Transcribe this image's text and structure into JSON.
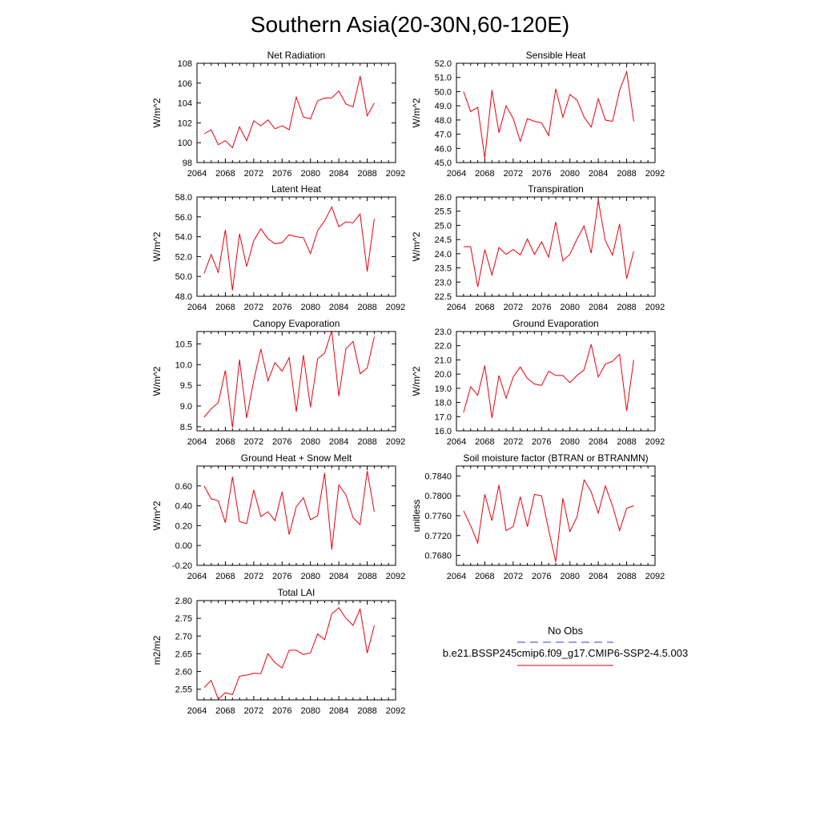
{
  "title": "Southern Asia(20-30N,60-120E)",
  "colors": {
    "model_line": "#e8000b",
    "obs_line": "#3a3ad0",
    "axis": "#000000"
  },
  "legend": {
    "obs_label": "No Obs",
    "model_label": "b.e21.BSSP245cmip6.f09_g17.CMIP6-SSP2-4.5.003"
  },
  "chart_data": [
    {
      "type": "line",
      "title": "Net Radiation",
      "ylabel": "W/m^2",
      "xlim": [
        2064,
        2092
      ],
      "xticks": [
        "2064",
        "2068",
        "2072",
        "2076",
        "2080",
        "2084",
        "2088",
        "2092"
      ],
      "ylim": [
        98,
        108
      ],
      "yticks": [
        "98",
        "100",
        "102",
        "104",
        "106",
        "108"
      ],
      "x": [
        2065,
        2066,
        2067,
        2068,
        2069,
        2070,
        2071,
        2072,
        2073,
        2074,
        2075,
        2076,
        2077,
        2078,
        2079,
        2080,
        2081,
        2082,
        2083,
        2084,
        2085,
        2086,
        2087,
        2088,
        2089
      ],
      "series": [
        {
          "values": [
            100.9,
            101.3,
            99.8,
            100.2,
            99.5,
            101.6,
            100.2,
            102.2,
            101.7,
            102.3,
            101.4,
            101.7,
            101.3,
            104.6,
            102.6,
            102.4,
            104.2,
            104.5,
            104.5,
            105.2,
            103.9,
            103.6,
            106.7,
            102.7,
            104.0
          ]
        }
      ]
    },
    {
      "type": "line",
      "title": "Sensible Heat",
      "ylabel": "W/m^2",
      "xlim": [
        2064,
        2092
      ],
      "xticks": [
        "2064",
        "2068",
        "2072",
        "2076",
        "2080",
        "2084",
        "2088",
        "2092"
      ],
      "ylim": [
        45,
        52
      ],
      "yticks": [
        "45.0",
        "46.0",
        "47.0",
        "48.0",
        "49.0",
        "50.0",
        "51.0",
        "52.0"
      ],
      "x": [
        2065,
        2066,
        2067,
        2068,
        2069,
        2070,
        2071,
        2072,
        2073,
        2074,
        2075,
        2076,
        2077,
        2078,
        2079,
        2080,
        2081,
        2082,
        2083,
        2084,
        2085,
        2086,
        2087,
        2088,
        2089
      ],
      "series": [
        {
          "values": [
            50.0,
            48.6,
            48.9,
            45.3,
            50.1,
            47.1,
            49.0,
            48.1,
            46.5,
            48.1,
            47.9,
            47.8,
            46.9,
            50.2,
            48.2,
            49.8,
            49.4,
            48.2,
            47.5,
            49.5,
            48.0,
            47.9,
            50.1,
            51.4,
            47.9
          ]
        }
      ]
    },
    {
      "type": "line",
      "title": "Latent Heat",
      "ylabel": "W/m^2",
      "xlim": [
        2064,
        2092
      ],
      "xticks": [
        "2064",
        "2068",
        "2072",
        "2076",
        "2080",
        "2084",
        "2088",
        "2092"
      ],
      "ylim": [
        48,
        58
      ],
      "yticks": [
        "48.0",
        "50.0",
        "52.0",
        "54.0",
        "56.0",
        "58.0"
      ],
      "x": [
        2065,
        2066,
        2067,
        2068,
        2069,
        2070,
        2071,
        2072,
        2073,
        2074,
        2075,
        2076,
        2077,
        2078,
        2079,
        2080,
        2081,
        2082,
        2083,
        2084,
        2085,
        2086,
        2087,
        2088,
        2089
      ],
      "series": [
        {
          "values": [
            50.3,
            52.2,
            50.4,
            54.7,
            48.6,
            54.3,
            51.0,
            53.6,
            54.8,
            53.8,
            53.3,
            53.4,
            54.2,
            54.0,
            53.9,
            52.3,
            54.6,
            55.6,
            57.0,
            55.0,
            55.5,
            55.4,
            56.3,
            50.5,
            55.8
          ]
        }
      ]
    },
    {
      "type": "line",
      "title": "Transpiration",
      "ylabel": "W/m^2",
      "xlim": [
        2064,
        2092
      ],
      "xticks": [
        "2064",
        "2068",
        "2072",
        "2076",
        "2080",
        "2084",
        "2088",
        "2092"
      ],
      "ylim": [
        22.5,
        26.0
      ],
      "yticks": [
        "22.5",
        "23.0",
        "23.5",
        "24.0",
        "24.5",
        "25.0",
        "25.5",
        "26.0"
      ],
      "x": [
        2065,
        2066,
        2067,
        2068,
        2069,
        2070,
        2071,
        2072,
        2073,
        2074,
        2075,
        2076,
        2077,
        2078,
        2079,
        2080,
        2081,
        2082,
        2083,
        2084,
        2085,
        2086,
        2087,
        2088,
        2089
      ],
      "series": [
        {
          "values": [
            24.25,
            24.25,
            22.83,
            24.15,
            23.25,
            24.22,
            23.98,
            24.15,
            23.95,
            24.52,
            23.98,
            24.42,
            23.88,
            25.12,
            23.75,
            23.98,
            24.52,
            24.98,
            24.02,
            25.88,
            24.45,
            23.95,
            25.05,
            23.12,
            24.08
          ]
        }
      ]
    },
    {
      "type": "line",
      "title": "Canopy Evaporation",
      "ylabel": "W/m^2",
      "xlim": [
        2064,
        2092
      ],
      "xticks": [
        "2064",
        "2068",
        "2072",
        "2076",
        "2080",
        "2084",
        "2088",
        "2092"
      ],
      "ylim": [
        8.4,
        10.8
      ],
      "yticks": [
        "8.5",
        "9.0",
        "9.5",
        "10.0",
        "10.5"
      ],
      "x": [
        2065,
        2066,
        2067,
        2068,
        2069,
        2070,
        2071,
        2072,
        2073,
        2074,
        2075,
        2076,
        2077,
        2078,
        2079,
        2080,
        2081,
        2082,
        2083,
        2084,
        2085,
        2086,
        2087,
        2088,
        2089
      ],
      "series": [
        {
          "values": [
            8.73,
            8.93,
            9.08,
            9.86,
            8.48,
            10.12,
            8.71,
            9.62,
            10.38,
            9.61,
            10.05,
            9.84,
            10.17,
            8.86,
            10.23,
            8.97,
            10.14,
            10.28,
            10.82,
            9.24,
            10.38,
            10.56,
            9.78,
            9.92,
            10.67
          ]
        }
      ]
    },
    {
      "type": "line",
      "title": "Ground Evaporation",
      "ylabel": "W/m^2",
      "xlim": [
        2064,
        2092
      ],
      "xticks": [
        "2064",
        "2068",
        "2072",
        "2076",
        "2080",
        "2084",
        "2088",
        "2092"
      ],
      "ylim": [
        16,
        23
      ],
      "yticks": [
        "16.0",
        "17.0",
        "18.0",
        "19.0",
        "20.0",
        "21.0",
        "22.0",
        "23.0"
      ],
      "x": [
        2065,
        2066,
        2067,
        2068,
        2069,
        2070,
        2071,
        2072,
        2073,
        2074,
        2075,
        2076,
        2077,
        2078,
        2079,
        2080,
        2081,
        2082,
        2083,
        2084,
        2085,
        2086,
        2087,
        2088,
        2089
      ],
      "series": [
        {
          "values": [
            17.3,
            19.1,
            18.5,
            20.6,
            16.9,
            19.9,
            18.3,
            19.8,
            20.5,
            19.7,
            19.3,
            19.2,
            20.2,
            19.9,
            19.9,
            19.4,
            19.9,
            20.3,
            22.1,
            19.8,
            20.7,
            20.9,
            21.4,
            17.4,
            21.0
          ]
        }
      ]
    },
    {
      "type": "line",
      "title": "Ground Heat + Snow Melt",
      "ylabel": "W/m^2",
      "xlim": [
        2064,
        2092
      ],
      "xticks": [
        "2064",
        "2068",
        "2072",
        "2076",
        "2080",
        "2084",
        "2088",
        "2092"
      ],
      "ylim": [
        -0.2,
        0.8
      ],
      "yticks": [
        "-0.20",
        "0.00",
        "0.20",
        "0.40",
        "0.60"
      ],
      "x": [
        2065,
        2066,
        2067,
        2068,
        2069,
        2070,
        2071,
        2072,
        2073,
        2074,
        2075,
        2076,
        2077,
        2078,
        2079,
        2080,
        2081,
        2082,
        2083,
        2084,
        2085,
        2086,
        2087,
        2088,
        2089
      ],
      "series": [
        {
          "values": [
            0.6,
            0.47,
            0.45,
            0.23,
            0.69,
            0.24,
            0.22,
            0.56,
            0.29,
            0.34,
            0.25,
            0.54,
            0.11,
            0.39,
            0.48,
            0.26,
            0.3,
            0.73,
            -0.04,
            0.61,
            0.51,
            0.28,
            0.21,
            0.75,
            0.34
          ]
        }
      ]
    },
    {
      "type": "line",
      "title": "Soil moisture factor (BTRAN or BTRANMN)",
      "ylabel": "unitless",
      "xlim": [
        2064,
        2092
      ],
      "xticks": [
        "2064",
        "2068",
        "2072",
        "2076",
        "2080",
        "2084",
        "2088",
        "2092"
      ],
      "ylim": [
        0.766,
        0.786
      ],
      "yticks": [
        "0.7680",
        "0.7720",
        "0.7760",
        "0.7800",
        "0.7840"
      ],
      "x": [
        2065,
        2066,
        2067,
        2068,
        2069,
        2070,
        2071,
        2072,
        2073,
        2074,
        2075,
        2076,
        2077,
        2078,
        2079,
        2080,
        2081,
        2082,
        2083,
        2084,
        2085,
        2086,
        2087,
        2088,
        2089
      ],
      "series": [
        {
          "values": [
            0.777,
            0.774,
            0.7705,
            0.7803,
            0.775,
            0.7822,
            0.773,
            0.7738,
            0.7798,
            0.7738,
            0.7803,
            0.78,
            0.7732,
            0.7667,
            0.7795,
            0.7728,
            0.7758,
            0.7832,
            0.7808,
            0.7765,
            0.782,
            0.778,
            0.773,
            0.7775,
            0.778
          ]
        }
      ]
    },
    {
      "type": "line",
      "title": "Total LAI",
      "ylabel": "m2/m2",
      "xlim": [
        2064,
        2092
      ],
      "xticks": [
        "2064",
        "2068",
        "2072",
        "2076",
        "2080",
        "2084",
        "2088",
        "2092"
      ],
      "ylim": [
        2.52,
        2.8
      ],
      "yticks": [
        "2.55",
        "2.60",
        "2.65",
        "2.70",
        "2.75",
        "2.80"
      ],
      "x": [
        2065,
        2066,
        2067,
        2068,
        2069,
        2070,
        2071,
        2072,
        2073,
        2074,
        2075,
        2076,
        2077,
        2078,
        2079,
        2080,
        2081,
        2082,
        2083,
        2084,
        2085,
        2086,
        2087,
        2088,
        2089
      ],
      "series": [
        {
          "values": [
            2.555,
            2.575,
            2.522,
            2.54,
            2.535,
            2.587,
            2.59,
            2.595,
            2.594,
            2.65,
            2.625,
            2.61,
            2.66,
            2.66,
            2.648,
            2.652,
            2.706,
            2.69,
            2.762,
            2.78,
            2.75,
            2.73,
            2.776,
            2.652,
            2.73
          ]
        }
      ]
    }
  ]
}
